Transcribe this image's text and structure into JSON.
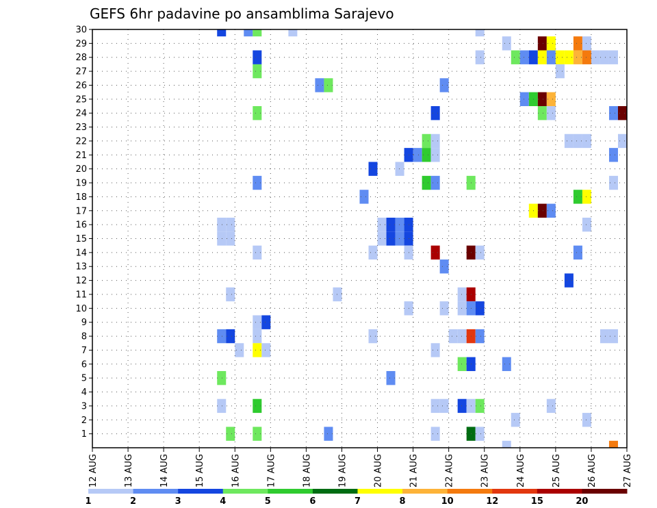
{
  "chart_data": {
    "type": "heatmap",
    "title": "GEFS 6hr padavine po ansamblima Sarajevo",
    "xlabel": "",
    "ylabel": "",
    "x_ticks": [
      "12 AUG",
      "13 AUG",
      "14 AUG",
      "15 AUG",
      "16 AUG",
      "17 AUG",
      "18 AUG",
      "19 AUG",
      "20 AUG",
      "21 AUG",
      "22 AUG",
      "23 AUG",
      "24 AUG",
      "25 AUG",
      "26 AUG",
      "27 AUG"
    ],
    "x_range_days": [
      0,
      15
    ],
    "y_ticks": [
      "1",
      "2",
      "3",
      "4",
      "5",
      "6",
      "7",
      "8",
      "9",
      "10",
      "11",
      "12",
      "13",
      "14",
      "15",
      "16",
      "17",
      "18",
      "19",
      "20",
      "21",
      "22",
      "23",
      "24",
      "25",
      "26",
      "27",
      "28",
      "29",
      "30"
    ],
    "y_range": [
      0,
      30
    ],
    "time_step_hours": 6,
    "grid": true,
    "colorbar": {
      "position": "bottom",
      "labels": [
        "1",
        "2",
        "3",
        "4",
        "5",
        "6",
        "7",
        "8",
        "10",
        "12",
        "15",
        "20"
      ],
      "colors": [
        "#b6c9f6",
        "#5f8cf2",
        "#1446e0",
        "#6ee85e",
        "#2fcb2f",
        "#006c12",
        "#ffff00",
        "#fdb338",
        "#f47a0e",
        "#e2370f",
        "#aa0000",
        "#6a0000"
      ]
    },
    "cells": [
      {
        "member": 30,
        "x": 3.5,
        "c": 2
      },
      {
        "member": 30,
        "x": 4.25,
        "c": 1
      },
      {
        "member": 30,
        "x": 4.5,
        "c": 3
      },
      {
        "member": 30,
        "x": 5.5,
        "c": 0
      },
      {
        "member": 30,
        "x": 10.75,
        "c": 0
      },
      {
        "member": 29,
        "x": 11.5,
        "c": 0
      },
      {
        "member": 29,
        "x": 12.5,
        "c": 11
      },
      {
        "member": 29,
        "x": 12.75,
        "c": 6
      },
      {
        "member": 29,
        "x": 13.5,
        "c": 8
      },
      {
        "member": 29,
        "x": 13.75,
        "c": 0
      },
      {
        "member": 28,
        "x": 4.5,
        "c": 2
      },
      {
        "member": 28,
        "x": 10.75,
        "c": 0
      },
      {
        "member": 28,
        "x": 11.75,
        "c": 3
      },
      {
        "member": 28,
        "x": 12.0,
        "c": 1
      },
      {
        "member": 28,
        "x": 12.25,
        "c": 2
      },
      {
        "member": 28,
        "x": 12.5,
        "c": 6
      },
      {
        "member": 28,
        "x": 12.75,
        "c": 1
      },
      {
        "member": 28,
        "x": 13.0,
        "c": 6
      },
      {
        "member": 28,
        "x": 13.25,
        "c": 6
      },
      {
        "member": 28,
        "x": 13.5,
        "c": 7
      },
      {
        "member": 28,
        "x": 13.75,
        "c": 8
      },
      {
        "member": 28,
        "x": 14.0,
        "c": 0
      },
      {
        "member": 28,
        "x": 14.25,
        "c": 0
      },
      {
        "member": 28,
        "x": 14.5,
        "c": 0
      },
      {
        "member": 27,
        "x": 4.5,
        "c": 3
      },
      {
        "member": 27,
        "x": 13.0,
        "c": 0
      },
      {
        "member": 26,
        "x": 6.25,
        "c": 1
      },
      {
        "member": 26,
        "x": 6.5,
        "c": 3
      },
      {
        "member": 26,
        "x": 9.75,
        "c": 1
      },
      {
        "member": 25,
        "x": 12.0,
        "c": 1
      },
      {
        "member": 25,
        "x": 12.25,
        "c": 4
      },
      {
        "member": 25,
        "x": 12.5,
        "c": 11
      },
      {
        "member": 25,
        "x": 12.75,
        "c": 7
      },
      {
        "member": 24,
        "x": 4.5,
        "c": 3
      },
      {
        "member": 24,
        "x": 9.5,
        "c": 2
      },
      {
        "member": 24,
        "x": 12.5,
        "c": 3
      },
      {
        "member": 24,
        "x": 12.75,
        "c": 0
      },
      {
        "member": 24,
        "x": 14.5,
        "c": 1
      },
      {
        "member": 24,
        "x": 14.75,
        "c": 11
      },
      {
        "member": 22,
        "x": 9.25,
        "c": 3
      },
      {
        "member": 22,
        "x": 9.5,
        "c": 0
      },
      {
        "member": 22,
        "x": 13.25,
        "c": 0
      },
      {
        "member": 22,
        "x": 13.5,
        "c": 0
      },
      {
        "member": 22,
        "x": 13.75,
        "c": 0
      },
      {
        "member": 22,
        "x": 14.75,
        "c": 0
      },
      {
        "member": 21,
        "x": 8.75,
        "c": 2
      },
      {
        "member": 21,
        "x": 9.0,
        "c": 1
      },
      {
        "member": 21,
        "x": 9.25,
        "c": 4
      },
      {
        "member": 21,
        "x": 9.5,
        "c": 0
      },
      {
        "member": 21,
        "x": 14.5,
        "c": 1
      },
      {
        "member": 20,
        "x": 7.75,
        "c": 2
      },
      {
        "member": 20,
        "x": 8.5,
        "c": 0
      },
      {
        "member": 19,
        "x": 4.5,
        "c": 1
      },
      {
        "member": 19,
        "x": 9.25,
        "c": 4
      },
      {
        "member": 19,
        "x": 9.5,
        "c": 1
      },
      {
        "member": 19,
        "x": 10.5,
        "c": 3
      },
      {
        "member": 19,
        "x": 14.5,
        "c": 0
      },
      {
        "member": 18,
        "x": 7.5,
        "c": 1
      },
      {
        "member": 18,
        "x": 13.5,
        "c": 4
      },
      {
        "member": 18,
        "x": 13.75,
        "c": 6
      },
      {
        "member": 17,
        "x": 12.25,
        "c": 6
      },
      {
        "member": 17,
        "x": 12.5,
        "c": 11
      },
      {
        "member": 17,
        "x": 12.75,
        "c": 1
      },
      {
        "member": 16,
        "x": 3.5,
        "c": 0
      },
      {
        "member": 16,
        "x": 3.75,
        "c": 0
      },
      {
        "member": 16,
        "x": 8.0,
        "c": 0
      },
      {
        "member": 16,
        "x": 8.25,
        "c": 2
      },
      {
        "member": 16,
        "x": 8.5,
        "c": 1
      },
      {
        "member": 16,
        "x": 8.75,
        "c": 2
      },
      {
        "member": 16,
        "x": 13.75,
        "c": 0
      },
      {
        "member": 15,
        "x": 3.5,
        "c": 0
      },
      {
        "member": 15,
        "x": 3.75,
        "c": 0
      },
      {
        "member": 15,
        "x": 8.0,
        "c": 0
      },
      {
        "member": 15,
        "x": 8.25,
        "c": 2
      },
      {
        "member": 15,
        "x": 8.5,
        "c": 1
      },
      {
        "member": 15,
        "x": 8.75,
        "c": 2
      },
      {
        "member": 14,
        "x": 4.5,
        "c": 0
      },
      {
        "member": 14,
        "x": 7.75,
        "c": 0
      },
      {
        "member": 14,
        "x": 8.75,
        "c": 0
      },
      {
        "member": 14,
        "x": 9.5,
        "c": 10
      },
      {
        "member": 14,
        "x": 10.5,
        "c": 11
      },
      {
        "member": 14,
        "x": 10.75,
        "c": 0
      },
      {
        "member": 14,
        "x": 13.5,
        "c": 1
      },
      {
        "member": 13,
        "x": 9.75,
        "c": 1
      },
      {
        "member": 12,
        "x": 13.25,
        "c": 2
      },
      {
        "member": 11,
        "x": 3.75,
        "c": 0
      },
      {
        "member": 11,
        "x": 6.75,
        "c": 0
      },
      {
        "member": 11,
        "x": 10.25,
        "c": 0
      },
      {
        "member": 11,
        "x": 10.5,
        "c": 10
      },
      {
        "member": 10,
        "x": 8.75,
        "c": 0
      },
      {
        "member": 10,
        "x": 9.75,
        "c": 0
      },
      {
        "member": 10,
        "x": 10.25,
        "c": 0
      },
      {
        "member": 10,
        "x": 10.5,
        "c": 1
      },
      {
        "member": 10,
        "x": 10.75,
        "c": 2
      },
      {
        "member": 9,
        "x": 4.5,
        "c": 0
      },
      {
        "member": 9,
        "x": 4.75,
        "c": 2
      },
      {
        "member": 8,
        "x": 3.5,
        "c": 1
      },
      {
        "member": 8,
        "x": 3.75,
        "c": 2
      },
      {
        "member": 8,
        "x": 4.5,
        "c": 0
      },
      {
        "member": 8,
        "x": 7.75,
        "c": 0
      },
      {
        "member": 8,
        "x": 10.0,
        "c": 0
      },
      {
        "member": 8,
        "x": 10.25,
        "c": 0
      },
      {
        "member": 8,
        "x": 10.5,
        "c": 9
      },
      {
        "member": 8,
        "x": 10.75,
        "c": 1
      },
      {
        "member": 8,
        "x": 14.25,
        "c": 0
      },
      {
        "member": 8,
        "x": 14.5,
        "c": 0
      },
      {
        "member": 7,
        "x": 4.0,
        "c": 0
      },
      {
        "member": 7,
        "x": 4.5,
        "c": 6
      },
      {
        "member": 7,
        "x": 4.75,
        "c": 0
      },
      {
        "member": 7,
        "x": 9.5,
        "c": 0
      },
      {
        "member": 6,
        "x": 10.25,
        "c": 3
      },
      {
        "member": 6,
        "x": 10.5,
        "c": 2
      },
      {
        "member": 6,
        "x": 11.5,
        "c": 1
      },
      {
        "member": 5,
        "x": 3.5,
        "c": 3
      },
      {
        "member": 5,
        "x": 8.25,
        "c": 1
      },
      {
        "member": 3,
        "x": 3.5,
        "c": 0
      },
      {
        "member": 3,
        "x": 4.5,
        "c": 4
      },
      {
        "member": 3,
        "x": 9.5,
        "c": 0
      },
      {
        "member": 3,
        "x": 9.75,
        "c": 0
      },
      {
        "member": 3,
        "x": 10.25,
        "c": 2
      },
      {
        "member": 3,
        "x": 10.5,
        "c": 0
      },
      {
        "member": 3,
        "x": 10.75,
        "c": 3
      },
      {
        "member": 3,
        "x": 12.75,
        "c": 0
      },
      {
        "member": 2,
        "x": 11.75,
        "c": 0
      },
      {
        "member": 2,
        "x": 13.75,
        "c": 0
      },
      {
        "member": 1,
        "x": 3.75,
        "c": 3
      },
      {
        "member": 1,
        "x": 4.5,
        "c": 3
      },
      {
        "member": 1,
        "x": 6.5,
        "c": 1
      },
      {
        "member": 1,
        "x": 9.5,
        "c": 0
      },
      {
        "member": 1,
        "x": 10.5,
        "c": 5
      },
      {
        "member": 1,
        "x": 10.75,
        "c": 0
      },
      {
        "member": 0,
        "x": 11.5,
        "c": 0
      },
      {
        "member": 0,
        "x": 14.5,
        "c": 8
      }
    ]
  }
}
